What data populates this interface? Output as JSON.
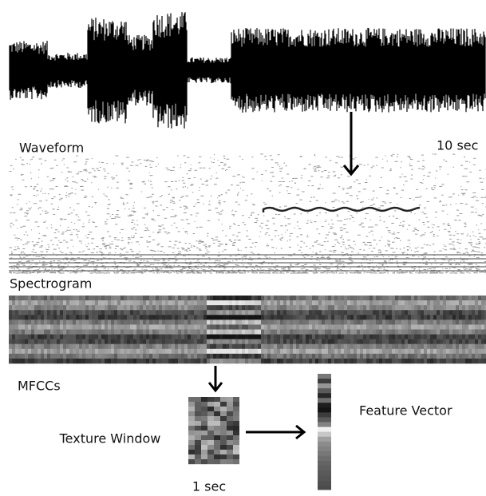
{
  "labels": {
    "waveform": "Waveform",
    "waveform_duration": "10 sec",
    "spectrogram": "Spectrogram",
    "mfccs": "MFCCs",
    "texture_window": "Texture Window",
    "texture_duration": "1 sec",
    "feature_vector": "Feature Vector"
  }
}
